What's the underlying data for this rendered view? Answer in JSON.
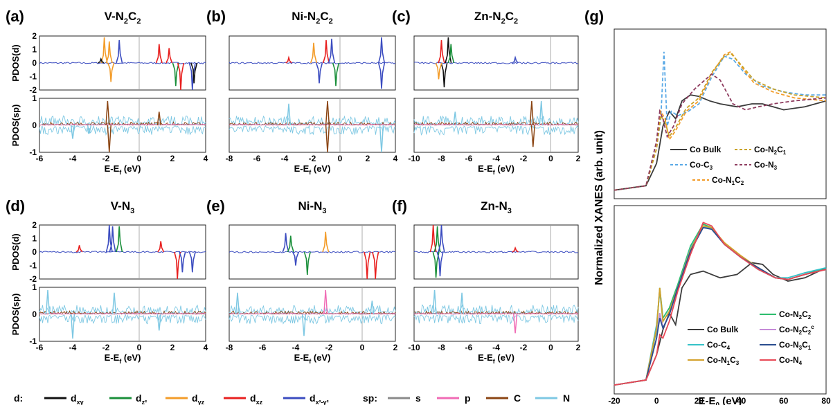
{
  "chart_data": [
    {
      "label": "(a)",
      "title": "V-N",
      "title_sub": [
        "2",
        "C",
        "2"
      ],
      "type": "line",
      "ylabel_top": "PDOS(d)",
      "ylabel_bottom": "PDOS(sp)",
      "xlabel": "E-E",
      "xlabel_sub": "f",
      "xlabel_unit": " (eV)",
      "xlim": [
        -6,
        4
      ],
      "xticks": [
        "-6",
        "-4",
        "-2",
        "0",
        "2",
        "4"
      ],
      "ylim_top": [
        -2,
        2
      ],
      "yticks_top": [
        "2",
        "1",
        "0",
        "-1",
        "-2"
      ],
      "ylim_bottom": [
        -1,
        1
      ],
      "yticks_bottom": [
        "1",
        "0",
        "-1"
      ],
      "peaks_d": [
        [
          -2.1,
          1.9,
          "#f39c29"
        ],
        [
          -1.8,
          1.6,
          "#f39c29"
        ],
        [
          -1.2,
          1.7,
          "#3b4cc0"
        ],
        [
          -1.7,
          -1.4,
          "#f39c29"
        ],
        [
          1.2,
          1.4,
          "#e8201f"
        ],
        [
          1.8,
          1.1,
          "#e8201f"
        ],
        [
          2.2,
          -1.7,
          "#1a8f3a"
        ],
        [
          2.5,
          -2.0,
          "#e8201f"
        ],
        [
          3.2,
          -2.0,
          "#3b4cc0"
        ],
        [
          3.3,
          -1.5,
          "#111111"
        ],
        [
          -2.3,
          0.3,
          "#111111"
        ]
      ],
      "peaks_sp": [
        [
          -1.9,
          0.9,
          "#8b4513"
        ],
        [
          -1.8,
          -1.0,
          "#8b4513"
        ],
        [
          1.2,
          0.5,
          "#8b4513"
        ],
        [
          -4.0,
          -0.5,
          "#7ec8e3"
        ],
        [
          -3.0,
          -0.3,
          "#7ec8e3"
        ]
      ]
    },
    {
      "label": "(b)",
      "title": "Ni-N",
      "title_sub": [
        "2",
        "C",
        "2"
      ],
      "type": "line",
      "ylabel_top": "",
      "ylabel_bottom": "",
      "xlabel": "E-E",
      "xlabel_sub": "f",
      "xlabel_unit": " (eV)",
      "xlim": [
        -8,
        4
      ],
      "xticks": [
        "-8",
        "-6",
        "-4",
        "-2",
        "0",
        "2",
        "4"
      ],
      "ylim_top": [
        -2,
        2
      ],
      "yticks_top": [],
      "ylim_bottom": [
        -1,
        1
      ],
      "yticks_bottom": [],
      "peaks_d": [
        [
          -1.9,
          1.5,
          "#f39c29"
        ],
        [
          -1.0,
          1.7,
          "#e8201f"
        ],
        [
          -0.6,
          1.8,
          "#3b4cc0"
        ],
        [
          -0.3,
          -1.7,
          "#1a8f3a"
        ],
        [
          -1.5,
          -1.5,
          "#3b4cc0"
        ],
        [
          3.0,
          1.9,
          "#3b4cc0"
        ],
        [
          3.0,
          -1.9,
          "#3b4cc0"
        ],
        [
          -3.7,
          0.4,
          "#e8201f"
        ]
      ],
      "peaks_sp": [
        [
          -0.9,
          0.9,
          "#8b4513"
        ],
        [
          -0.9,
          -1.0,
          "#8b4513"
        ],
        [
          3.0,
          -1.0,
          "#7ec8e3"
        ],
        [
          -3.7,
          0.8,
          "#7ec8e3"
        ]
      ]
    },
    {
      "label": "(c)",
      "title": "Zn-N",
      "title_sub": [
        "2",
        "C",
        "2"
      ],
      "type": "line",
      "ylabel_top": "",
      "ylabel_bottom": "",
      "xlabel": "E-E",
      "xlabel_sub": "f",
      "xlabel_unit": " (eV)",
      "xlim": [
        -10,
        2
      ],
      "xticks": [
        "-10",
        "-8",
        "-6",
        "-4",
        "-2",
        "0",
        "2"
      ],
      "ylim_top": [
        -2,
        2
      ],
      "yticks_top": [],
      "ylim_bottom": [
        -1,
        1
      ],
      "yticks_bottom": [],
      "peaks_d": [
        [
          -8.0,
          1.7,
          "#e8201f"
        ],
        [
          -7.5,
          1.9,
          "#111111"
        ],
        [
          -7.8,
          -1.8,
          "#111111"
        ],
        [
          -8.2,
          -1.2,
          "#f39c29"
        ],
        [
          -7.3,
          1.4,
          "#1a8f3a"
        ],
        [
          -2.6,
          0.4,
          "#3b4cc0"
        ]
      ],
      "peaks_sp": [
        [
          -1.4,
          0.9,
          "#8b4513"
        ],
        [
          -1.3,
          -0.8,
          "#8b4513"
        ],
        [
          -0.7,
          0.9,
          "#7ec8e3"
        ],
        [
          -7.0,
          0.5,
          "#7ec8e3"
        ]
      ]
    },
    {
      "label": "(d)",
      "title": "V-N",
      "title_sub": [
        "3",
        "",
        ""
      ],
      "type": "line",
      "ylabel_top": "PDOS(d)",
      "ylabel_bottom": "PDOS(sp)",
      "xlabel": "E-E",
      "xlabel_sub": "f",
      "xlabel_unit": " (eV)",
      "xlim": [
        -6,
        4
      ],
      "xticks": [
        "-6",
        "-4",
        "-2",
        "0",
        "2",
        "4"
      ],
      "ylim_top": [
        -2,
        2
      ],
      "yticks_top": [
        "2",
        "1",
        "0",
        "-1",
        "-2"
      ],
      "ylim_bottom": [
        -1,
        1
      ],
      "yticks_bottom": [
        "1",
        "0",
        "-1"
      ],
      "peaks_d": [
        [
          -1.8,
          2.0,
          "#3b4cc0"
        ],
        [
          -1.6,
          1.9,
          "#3b4cc0"
        ],
        [
          -1.2,
          1.9,
          "#1a8f3a"
        ],
        [
          -3.6,
          0.5,
          "#e8201f"
        ],
        [
          1.3,
          0.8,
          "#e8201f"
        ],
        [
          2.3,
          -2.0,
          "#e8201f"
        ],
        [
          2.6,
          -1.5,
          "#3b4cc0"
        ],
        [
          3.2,
          -1.5,
          "#3b4cc0"
        ]
      ],
      "peaks_sp": [
        [
          -5.5,
          0.9,
          "#7ec8e3"
        ],
        [
          -4.0,
          -0.9,
          "#7ec8e3"
        ],
        [
          -1.5,
          0.8,
          "#7ec8e3"
        ],
        [
          1.2,
          -0.6,
          "#7ec8e3"
        ]
      ]
    },
    {
      "label": "(e)",
      "title": "Ni-N",
      "title_sub": [
        "3",
        "",
        ""
      ],
      "type": "line",
      "ylabel_top": "",
      "ylabel_bottom": "",
      "xlabel": "E-E",
      "xlabel_sub": "f",
      "xlabel_unit": " (eV)",
      "xlim": [
        -8,
        2
      ],
      "xticks": [
        "-8",
        "-6",
        "-4",
        "-2",
        "0",
        "2"
      ],
      "ylim_top": [
        -2,
        2
      ],
      "yticks_top": [],
      "ylim_bottom": [
        -1,
        1
      ],
      "yticks_bottom": [],
      "peaks_d": [
        [
          -4.6,
          1.4,
          "#3b4cc0"
        ],
        [
          -4.3,
          1.2,
          "#1a8f3a"
        ],
        [
          -2.2,
          1.5,
          "#f39c29"
        ],
        [
          -3.3,
          -1.7,
          "#1a8f3a"
        ],
        [
          0.3,
          -2.0,
          "#e8201f"
        ],
        [
          0.8,
          -2.0,
          "#e8201f"
        ],
        [
          -4.0,
          -1.0,
          "#3b4cc0"
        ]
      ],
      "peaks_sp": [
        [
          -2.2,
          0.9,
          "#f06bb5"
        ],
        [
          -7.5,
          0.8,
          "#7ec8e3"
        ],
        [
          -3.5,
          -0.8,
          "#7ec8e3"
        ],
        [
          0.6,
          0.5,
          "#7ec8e3"
        ]
      ]
    },
    {
      "label": "(f)",
      "title": "Zn-N",
      "title_sub": [
        "3",
        "",
        ""
      ],
      "type": "line",
      "ylabel_top": "",
      "ylabel_bottom": "",
      "xlabel": "E-E",
      "xlabel_sub": "f",
      "xlabel_unit": " (eV)",
      "xlim": [
        -10,
        2
      ],
      "xticks": [
        "-10",
        "-8",
        "-6",
        "-4",
        "-2",
        "0",
        "2"
      ],
      "ylim_top": [
        -2,
        2
      ],
      "yticks_top": [],
      "ylim_bottom": [
        -1,
        1
      ],
      "yticks_bottom": [],
      "peaks_d": [
        [
          -8.6,
          2.0,
          "#e8201f"
        ],
        [
          -8.3,
          1.9,
          "#1a8f3a"
        ],
        [
          -8.0,
          2.0,
          "#3b4cc0"
        ],
        [
          -8.4,
          -1.9,
          "#1a8f3a"
        ],
        [
          -8.1,
          -1.8,
          "#3b4cc0"
        ],
        [
          -2.6,
          0.3,
          "#e8201f"
        ]
      ],
      "peaks_sp": [
        [
          -8.5,
          0.9,
          "#7ec8e3"
        ],
        [
          -6.5,
          0.8,
          "#7ec8e3"
        ],
        [
          -2.6,
          -0.7,
          "#f06bb5"
        ]
      ]
    },
    {
      "label": "(g)",
      "type": "line",
      "ylabel": "Normalized XANES (arb. unit)",
      "xlabel": "E-E",
      "xlabel_sub": "0",
      "xlabel_unit": " (eV)",
      "xlim": [
        -20,
        80
      ],
      "xticks": [
        "-20",
        "0",
        "20",
        "40",
        "60",
        "80"
      ],
      "top_series": [
        {
          "name": "Co Bulk",
          "color": "#3b3b3b",
          "dash": "none",
          "x": [
            -20,
            -5,
            0,
            3,
            6,
            9,
            12,
            16,
            20,
            25,
            30,
            38,
            45,
            50,
            55,
            60,
            70,
            80
          ],
          "y": [
            0.02,
            0.05,
            0.2,
            0.45,
            0.55,
            0.5,
            0.62,
            0.66,
            0.65,
            0.62,
            0.6,
            0.58,
            0.6,
            0.6,
            0.58,
            0.56,
            0.58,
            0.62
          ]
        },
        {
          "name": "Co-C",
          "sub": "3",
          "color": "#5aa9e6",
          "dash": "5,3",
          "x": [
            -20,
            -5,
            0,
            2,
            3.5,
            5,
            7,
            10,
            15,
            20,
            26,
            32,
            36,
            42,
            50,
            60,
            70,
            80
          ],
          "y": [
            0.02,
            0.05,
            0.3,
            0.5,
            0.95,
            0.45,
            0.55,
            0.52,
            0.55,
            0.6,
            0.78,
            0.92,
            0.9,
            0.8,
            0.72,
            0.68,
            0.66,
            0.66
          ]
        },
        {
          "name": "Co-N",
          "sub": "1",
          "sub2": "C",
          "sub3": "2",
          "color": "#f39c29",
          "dash": "5,3",
          "x": [
            -20,
            -5,
            0,
            2,
            4,
            6,
            9,
            14,
            20,
            26,
            32,
            35,
            40,
            46,
            55,
            65,
            80
          ],
          "y": [
            0.02,
            0.05,
            0.3,
            0.55,
            0.5,
            0.36,
            0.42,
            0.55,
            0.62,
            0.8,
            0.93,
            0.95,
            0.85,
            0.74,
            0.68,
            0.64,
            0.62
          ]
        },
        {
          "name": "Co-N",
          "sub": "2",
          "sub2": "C",
          "sub3": "1",
          "color": "#c9a227",
          "dash": "5,3",
          "x": [
            -20,
            -5,
            0,
            2,
            4,
            6,
            9,
            14,
            20,
            26,
            32,
            35,
            40,
            46,
            55,
            65,
            80
          ],
          "y": [
            0.02,
            0.05,
            0.3,
            0.52,
            0.48,
            0.38,
            0.44,
            0.57,
            0.64,
            0.81,
            0.92,
            0.94,
            0.86,
            0.76,
            0.7,
            0.66,
            0.64
          ]
        },
        {
          "name": "Co-N",
          "sub": "3",
          "color": "#8e3b5e",
          "dash": "5,3",
          "x": [
            -20,
            -5,
            0,
            1.5,
            3,
            5,
            8,
            12,
            18,
            22,
            26,
            30,
            36,
            42,
            48,
            55,
            65,
            80
          ],
          "y": [
            0.02,
            0.05,
            0.35,
            0.55,
            0.5,
            0.38,
            0.45,
            0.6,
            0.7,
            0.75,
            0.8,
            0.76,
            0.6,
            0.56,
            0.58,
            0.6,
            0.62,
            0.64
          ]
        }
      ],
      "bottom_series": [
        {
          "name": "Co Bulk",
          "color": "#3b3b3b",
          "x": [
            -20,
            -5,
            0,
            3,
            6,
            9,
            12,
            16,
            22,
            30,
            38,
            45,
            50,
            55,
            62,
            70,
            80
          ],
          "y": [
            0.02,
            0.05,
            0.2,
            0.35,
            0.45,
            0.38,
            0.6,
            0.68,
            0.7,
            0.66,
            0.68,
            0.75,
            0.74,
            0.68,
            0.64,
            0.66,
            0.72
          ]
        },
        {
          "name": "Co-N",
          "sub": "2",
          "sub2": "C",
          "sub3": "2",
          "color": "#2dbd6e",
          "x": [
            -20,
            -5,
            0,
            1.5,
            3,
            6,
            10,
            16,
            22,
            26,
            32,
            40,
            48,
            56,
            62,
            70,
            80
          ],
          "y": [
            0.02,
            0.05,
            0.35,
            0.6,
            0.42,
            0.48,
            0.62,
            0.85,
            0.98,
            0.96,
            0.86,
            0.78,
            0.72,
            0.66,
            0.65,
            0.68,
            0.72
          ]
        },
        {
          "name": "Co-C",
          "sub": "4",
          "color": "#35c2c8",
          "x": [
            -20,
            -5,
            0,
            1.5,
            3,
            6,
            10,
            16,
            22,
            26,
            32,
            40,
            48,
            56,
            62,
            70,
            80
          ],
          "y": [
            0.02,
            0.05,
            0.38,
            0.58,
            0.4,
            0.46,
            0.6,
            0.84,
            0.97,
            0.95,
            0.86,
            0.78,
            0.71,
            0.66,
            0.66,
            0.69,
            0.72
          ]
        },
        {
          "name": "Co-N",
          "sub": "2",
          "sub2": "C",
          "sub3": "2",
          "sup": "c",
          "color": "#c58ad8",
          "x": [
            -20,
            -5,
            0,
            1.5,
            3,
            6,
            10,
            16,
            22,
            26,
            32,
            40,
            48,
            56,
            62,
            70,
            80
          ],
          "y": [
            0.02,
            0.05,
            0.3,
            0.45,
            0.36,
            0.44,
            0.6,
            0.82,
            0.96,
            0.95,
            0.86,
            0.78,
            0.72,
            0.66,
            0.65,
            0.68,
            0.71
          ]
        },
        {
          "name": "Co-N",
          "sub": "1",
          "sub2": "C",
          "sub3": "3",
          "color": "#d4a02a",
          "x": [
            -20,
            -5,
            0,
            1.5,
            3,
            6,
            10,
            16,
            22,
            26,
            32,
            40,
            48,
            56,
            62,
            70,
            80
          ],
          "y": [
            0.02,
            0.05,
            0.36,
            0.6,
            0.4,
            0.46,
            0.6,
            0.83,
            0.97,
            0.96,
            0.87,
            0.79,
            0.72,
            0.66,
            0.65,
            0.68,
            0.71
          ]
        },
        {
          "name": "Co-N",
          "sub": "3",
          "sub2": "C",
          "sub3": "1",
          "color": "#2a4d8f",
          "x": [
            -20,
            -5,
            0,
            1.5,
            3,
            6,
            10,
            16,
            22,
            26,
            32,
            40,
            48,
            56,
            62,
            70,
            80
          ],
          "y": [
            0.02,
            0.05,
            0.3,
            0.42,
            0.36,
            0.44,
            0.6,
            0.82,
            0.96,
            0.95,
            0.86,
            0.78,
            0.72,
            0.66,
            0.65,
            0.68,
            0.71
          ]
        },
        {
          "name": "Co-N",
          "sub": "4",
          "color": "#e84855",
          "x": [
            -20,
            -5,
            0,
            1.5,
            3,
            6,
            10,
            16,
            22,
            26,
            32,
            40,
            48,
            56,
            62,
            70,
            80
          ],
          "y": [
            0.02,
            0.05,
            0.2,
            0.32,
            0.3,
            0.4,
            0.58,
            0.8,
            0.99,
            0.97,
            0.86,
            0.78,
            0.71,
            0.66,
            0.65,
            0.68,
            0.71
          ]
        }
      ]
    }
  ],
  "legend": {
    "d_label": "d:",
    "d_items": [
      {
        "base": "d",
        "sub": "xy",
        "color": "#111111"
      },
      {
        "base": "d",
        "sub": "z²",
        "color": "#1a8f3a"
      },
      {
        "base": "d",
        "sub": "yz",
        "color": "#f39c29"
      },
      {
        "base": "d",
        "sub": "xz",
        "color": "#e8201f"
      },
      {
        "base": "d",
        "sub": "x²-y²",
        "color": "#3b4cc0"
      }
    ],
    "sp_label": "sp:",
    "sp_items": [
      {
        "base": "s",
        "color": "#8a8a8a"
      },
      {
        "base": "p",
        "color": "#f06bb5"
      },
      {
        "base": "C",
        "color": "#8b4513"
      },
      {
        "base": "N",
        "color": "#7ec8e3"
      }
    ]
  }
}
